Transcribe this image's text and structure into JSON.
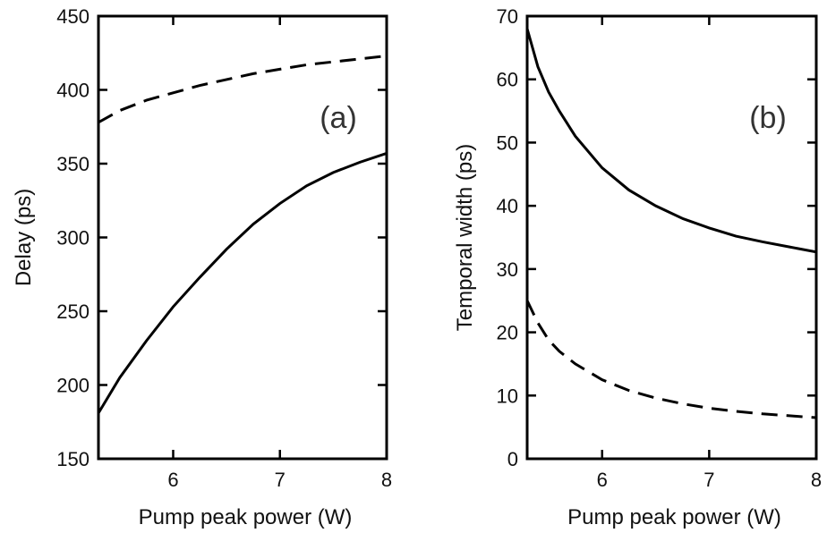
{
  "chart_data": [
    {
      "type": "line",
      "panel_label": "(a)",
      "xlabel": "Pump peak power (W)",
      "ylabel": "Delay (ps)",
      "xlim": [
        5.3,
        8
      ],
      "ylim": [
        150,
        450
      ],
      "xticks": [
        6,
        7,
        8
      ],
      "yticks": [
        150,
        200,
        250,
        300,
        350,
        400,
        450
      ],
      "series": [
        {
          "style": "solid",
          "x": [
            5.3,
            5.5,
            5.75,
            6.0,
            6.25,
            6.5,
            6.75,
            7.0,
            7.25,
            7.5,
            7.75,
            8.0
          ],
          "y": [
            181,
            205,
            230,
            253,
            273,
            292,
            309,
            323,
            335,
            344,
            351,
            357
          ]
        },
        {
          "style": "dashed",
          "x": [
            5.3,
            5.5,
            5.75,
            6.0,
            6.25,
            6.5,
            6.75,
            7.0,
            7.25,
            7.5,
            7.75,
            8.0
          ],
          "y": [
            378,
            386,
            393,
            398,
            403,
            407,
            411,
            414,
            417,
            419,
            421,
            423
          ]
        }
      ]
    },
    {
      "type": "line",
      "panel_label": "(b)",
      "xlabel": "Pump peak power (W)",
      "ylabel": "Temporal width (ps)",
      "xlim": [
        5.3,
        8
      ],
      "ylim": [
        0,
        70
      ],
      "xticks": [
        6,
        7,
        8
      ],
      "yticks": [
        0,
        10,
        20,
        30,
        40,
        50,
        60,
        70
      ],
      "series": [
        {
          "style": "solid",
          "x": [
            5.3,
            5.4,
            5.5,
            5.6,
            5.75,
            6.0,
            6.25,
            6.5,
            6.75,
            7.0,
            7.25,
            7.5,
            7.75,
            8.0
          ],
          "y": [
            68,
            62,
            58,
            55,
            51,
            46,
            42.5,
            40,
            38,
            36.5,
            35.2,
            34.3,
            33.5,
            32.7
          ]
        },
        {
          "style": "dashed",
          "x": [
            5.3,
            5.4,
            5.5,
            5.6,
            5.75,
            6.0,
            6.25,
            6.5,
            6.75,
            7.0,
            7.25,
            7.5,
            7.75,
            8.0
          ],
          "y": [
            25,
            21.5,
            18.8,
            17,
            15,
            12.5,
            10.8,
            9.6,
            8.7,
            8.0,
            7.5,
            7.1,
            6.8,
            6.5
          ]
        }
      ]
    }
  ]
}
